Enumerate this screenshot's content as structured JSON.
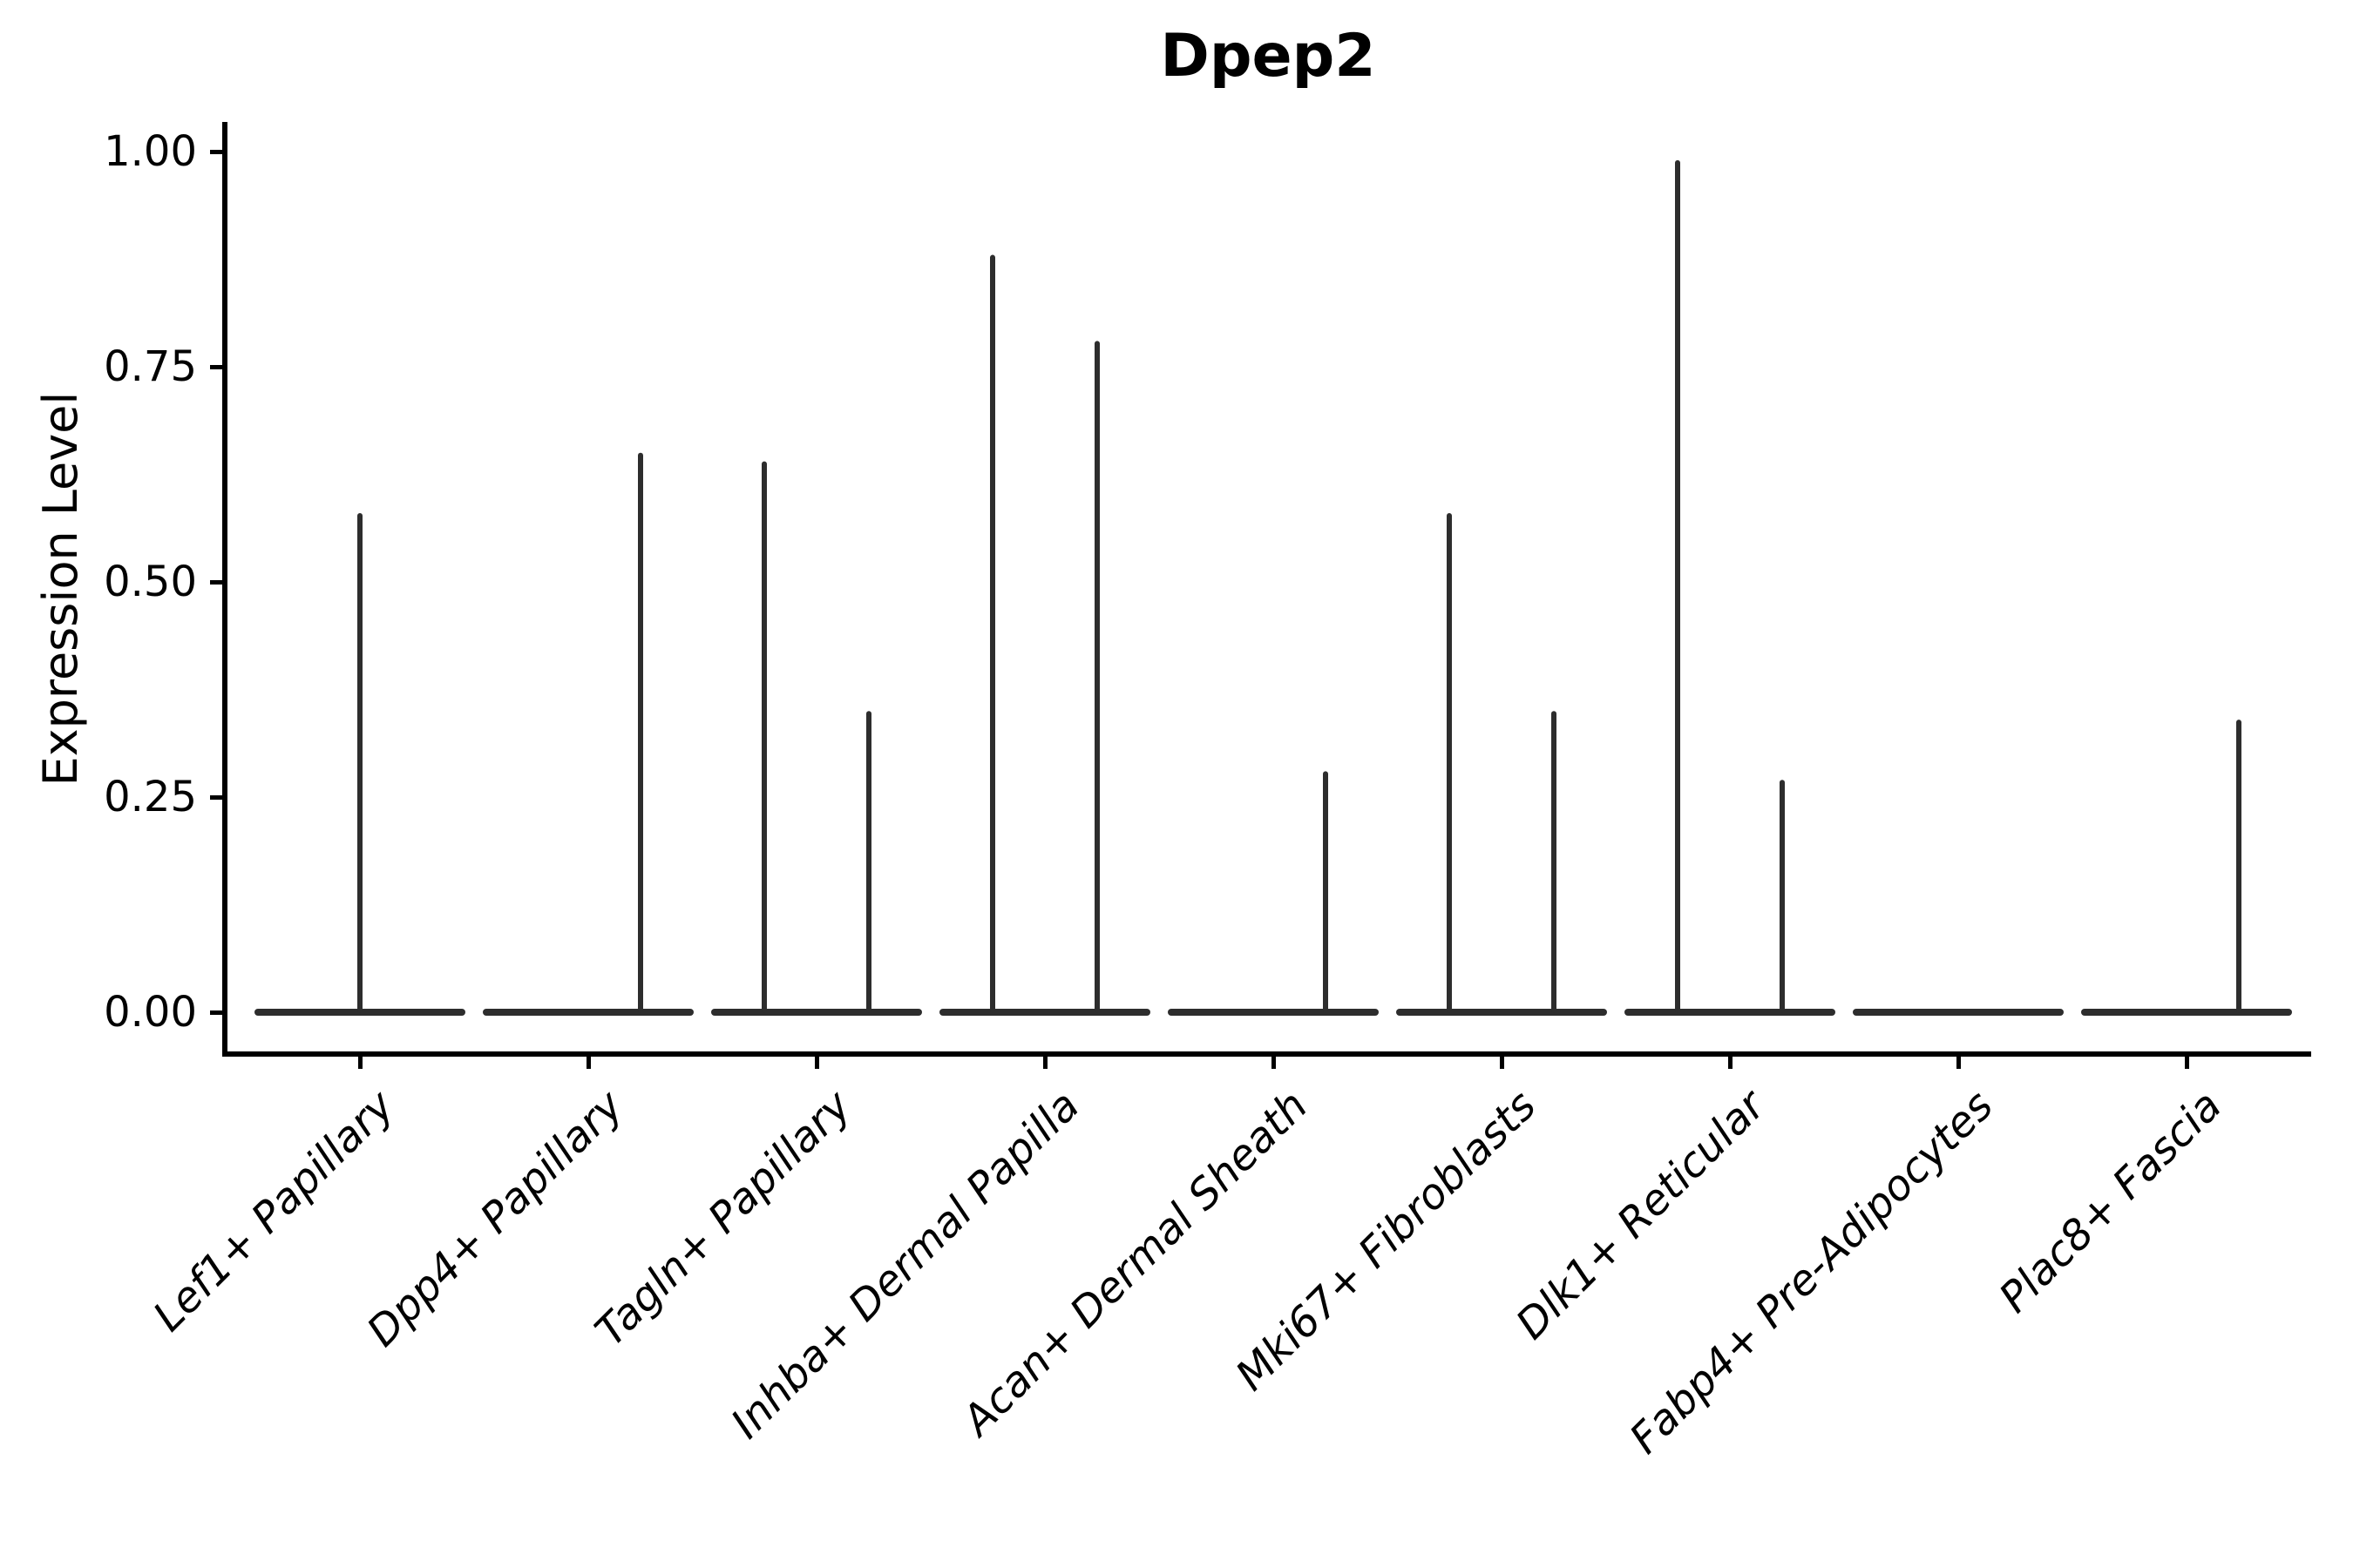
{
  "figure": {
    "background_color": "#ffffff",
    "text_color": "#000000"
  },
  "chart_data": {
    "type": "violin",
    "title": "Dpep2",
    "xlabel": "",
    "ylabel": "Expression Level",
    "ylim": [
      0,
      1.0
    ],
    "grid": false,
    "legend": "none",
    "yticks": [
      {
        "value": 1.0,
        "label": "1.00"
      },
      {
        "value": 0.75,
        "label": "0.75"
      },
      {
        "value": 0.5,
        "label": "0.50"
      },
      {
        "value": 0.25,
        "label": "0.25"
      },
      {
        "value": 0.0,
        "label": "0.00"
      }
    ],
    "categories": [
      "Lef1+ Papillary",
      "Dpp4+ Papillary",
      "Tagln+ Papillary",
      "Inhba+ Dermal Papilla",
      "Acan+ Dermal Sheath",
      "Mki67+ Fibroblasts",
      "Dlk1+ Reticular",
      "Fabp4+ Pre-Adipocytes",
      "Plac8+ Fascia"
    ],
    "violins": [
      {
        "category": "Lef1+ Papillary",
        "baseline_value": 0.0,
        "spikes": [
          {
            "position": "center",
            "max": 0.58
          }
        ]
      },
      {
        "category": "Dpp4+ Papillary",
        "baseline_value": 0.0,
        "spikes": [
          {
            "position": "right",
            "max": 0.65
          }
        ]
      },
      {
        "category": "Tagln+ Papillary",
        "baseline_value": 0.0,
        "spikes": [
          {
            "position": "left",
            "max": 0.64
          },
          {
            "position": "right",
            "max": 0.35
          }
        ]
      },
      {
        "category": "Inhba+ Dermal Papilla",
        "baseline_value": 0.0,
        "spikes": [
          {
            "position": "left",
            "max": 0.88
          },
          {
            "position": "right",
            "max": 0.78
          }
        ]
      },
      {
        "category": "Acan+ Dermal Sheath",
        "baseline_value": 0.0,
        "spikes": [
          {
            "position": "right",
            "max": 0.28
          }
        ]
      },
      {
        "category": "Mki67+ Fibroblasts",
        "baseline_value": 0.0,
        "spikes": [
          {
            "position": "left",
            "max": 0.58
          },
          {
            "position": "right",
            "max": 0.35
          }
        ]
      },
      {
        "category": "Dlk1+ Reticular",
        "baseline_value": 0.0,
        "spikes": [
          {
            "position": "left",
            "max": 0.99
          },
          {
            "position": "right",
            "max": 0.27
          }
        ]
      },
      {
        "category": "Fabp4+ Pre-Adipocytes",
        "baseline_value": 0.0,
        "spikes": []
      },
      {
        "category": "Plac8+ Fascia",
        "baseline_value": 0.0,
        "spikes": [
          {
            "position": "right",
            "max": 0.34
          }
        ]
      }
    ],
    "violin_line_color": "#2d2d2d",
    "axis_color": "#000000"
  }
}
